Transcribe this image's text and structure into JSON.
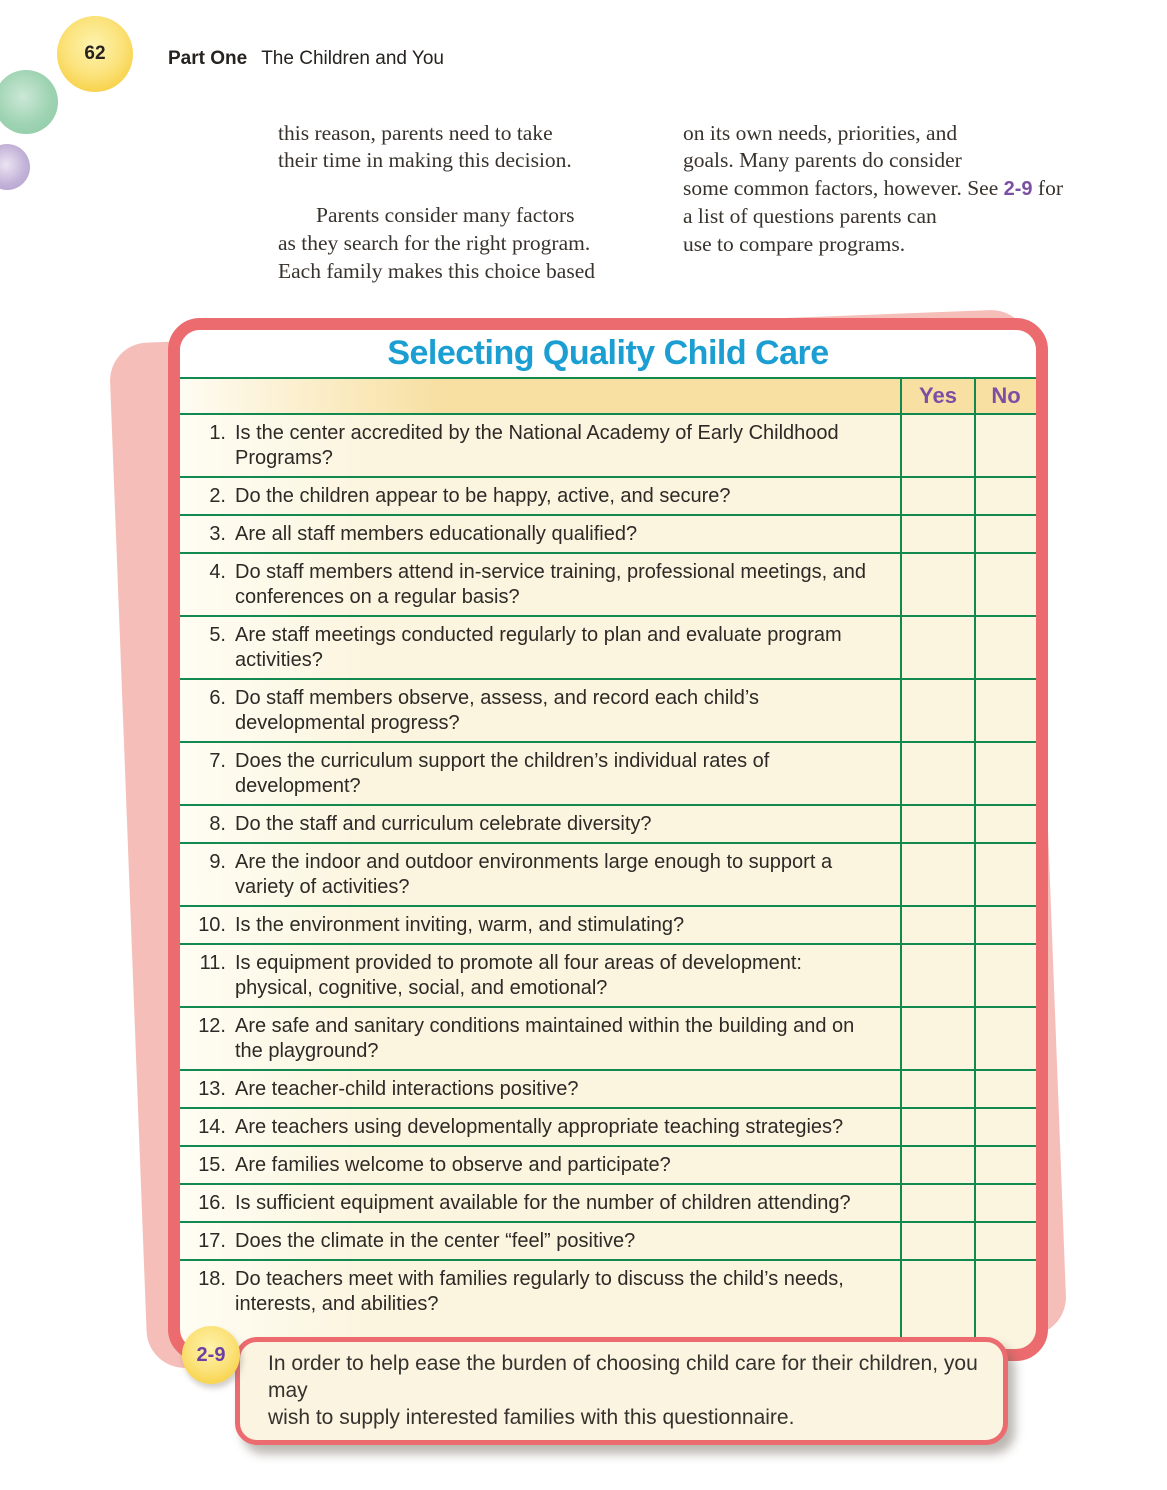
{
  "page": {
    "number": "62",
    "header_part": "Part One",
    "header_title": "The Children and You"
  },
  "intro": {
    "col1_para1": "this reason, parents need to take\ntheir time in making this decision.",
    "col1_para2": "Parents consider many factors\nas they search for the right program.\nEach family makes this choice based",
    "col2_before_ref": "on its own needs, priorities, and\ngoals. Many parents do consider\nsome common factors, however. See ",
    "col2_ref": "2-9",
    "col2_after_ref": " for a list of questions parents can\nuse to compare programs."
  },
  "figure": {
    "title": "Selecting Quality Child Care",
    "yes_label": "Yes",
    "no_label": "No",
    "questions": [
      {
        "num": "1.",
        "text": "Is the center accredited by the National Academy of Early Childhood\nPrograms?"
      },
      {
        "num": "2.",
        "text": "Do the children appear to be happy, active, and secure?"
      },
      {
        "num": "3.",
        "text": "Are all staff members educationally qualified?"
      },
      {
        "num": "4.",
        "text": "Do staff members attend in-service training, professional meetings, and\nconferences on a regular basis?"
      },
      {
        "num": "5.",
        "text": "Are staff meetings conducted regularly to plan and evaluate program\nactivities?"
      },
      {
        "num": "6.",
        "text": "Do staff members observe, assess, and record each child’s\ndevelopmental progress?"
      },
      {
        "num": "7.",
        "text": "Does the curriculum support the children’s individual rates of development?"
      },
      {
        "num": "8.",
        "text": "Do the staff and curriculum celebrate diversity?"
      },
      {
        "num": "9.",
        "text": "Are the indoor and outdoor environments large enough to support a\nvariety of activities?"
      },
      {
        "num": "10.",
        "text": "Is the environment inviting, warm, and stimulating?"
      },
      {
        "num": "11.",
        "text": "Is equipment provided to promote all four areas of development:\nphysical, cognitive, social, and emotional?"
      },
      {
        "num": "12.",
        "text": "Are safe and sanitary conditions maintained within the building and on\nthe playground?"
      },
      {
        "num": "13.",
        "text": "Are teacher-child interactions positive?"
      },
      {
        "num": "14.",
        "text": "Are teachers using developmentally appropriate teaching strategies?"
      },
      {
        "num": "15.",
        "text": "Are families welcome to observe and participate?"
      },
      {
        "num": "16.",
        "text": "Is sufficient equipment available for the number of children attending?"
      },
      {
        "num": "17.",
        "text": "Does the climate in the center “feel” positive?"
      },
      {
        "num": "18.",
        "text": "Do teachers meet with families regularly to discuss the child’s needs,\ninterests, and abilities?"
      }
    ],
    "badge": "2-9",
    "caption": "In order to help ease the burden of choosing child care for their children, you may\nwish to supply interested families with this questionnaire."
  },
  "colors": {
    "frame_red": "#ec6b6e",
    "back_pink": "#f5beb8",
    "line_green": "#12894f",
    "band_tan": "#f8e0a3",
    "body_cream": "#fbf5df",
    "title_cyan": "#1b9ed2",
    "accent_purple": "#7b4fa3",
    "badge_yellow": "#f7cf41"
  }
}
